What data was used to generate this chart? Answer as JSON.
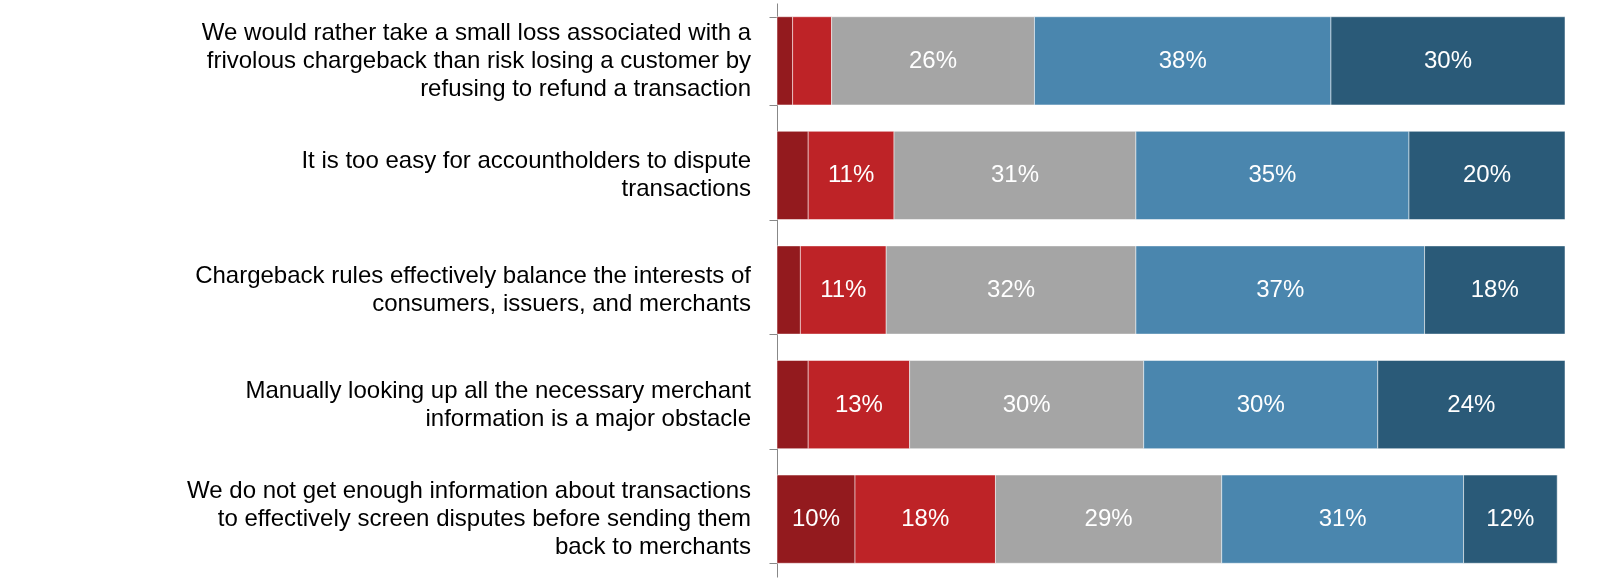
{
  "chart_data": {
    "type": "bar",
    "orientation": "horizontal",
    "stacked": true,
    "categories": [
      "We would rather take a small loss associated with a frivolous chargeback than risk losing a customer by refusing to refund a transaction",
      "It is too easy for accountholders to dispute transactions",
      "Chargeback rules effectively balance the interests of consumers, issuers, and merchants",
      "Manually looking up all the necessary merchant information is a major obstacle",
      "We do not get enough information about transactions to effectively screen disputes before sending them back to merchants"
    ],
    "series": [
      {
        "color": "#931a1e",
        "values": [
          2,
          4,
          3,
          4,
          10
        ],
        "value_labels": [
          null,
          null,
          null,
          null,
          "10%"
        ]
      },
      {
        "color": "#be2327",
        "values": [
          5,
          11,
          11,
          13,
          18
        ],
        "value_labels": [
          null,
          "11%",
          "11%",
          "13%",
          "18%"
        ]
      },
      {
        "color": "#a5a5a5",
        "values": [
          26,
          31,
          32,
          30,
          29
        ],
        "value_labels": [
          "26%",
          "31%",
          "32%",
          "30%",
          "29%"
        ]
      },
      {
        "color": "#4a86ae",
        "values": [
          38,
          35,
          37,
          30,
          31
        ],
        "value_labels": [
          "38%",
          "35%",
          "37%",
          "30%",
          "31%"
        ]
      },
      {
        "color": "#2a5a78",
        "values": [
          30,
          20,
          18,
          24,
          12
        ],
        "value_labels": [
          "30%",
          "20%",
          "18%",
          "24%",
          "12%"
        ]
      }
    ]
  }
}
